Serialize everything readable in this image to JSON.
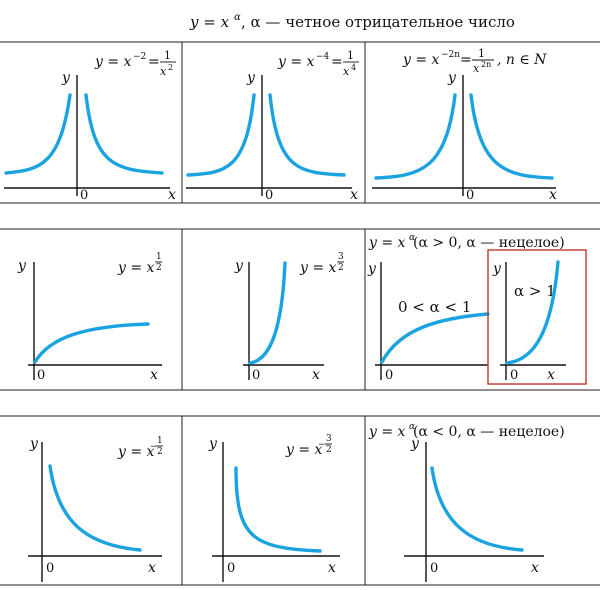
{
  "header": {
    "formula": "y = x",
    "exponent": "α",
    "caption": ", α — четное отрицательное число"
  },
  "row1": [
    {
      "lhs": "y = x",
      "exp": "−2",
      "eq": "=",
      "num": "1",
      "den_base": "x",
      "den_exp": "2",
      "y_label": "y",
      "x_label": "x",
      "origin": "0"
    },
    {
      "lhs": "y = x",
      "exp": "−4",
      "eq": "=",
      "num": "1",
      "den_base": "x",
      "den_exp": "4",
      "y_label": "y",
      "x_label": "x",
      "origin": "0"
    },
    {
      "lhs": "y = x",
      "exp": "−2n",
      "eq": "=",
      "num": "1",
      "den_base": "x",
      "den_exp": "2n",
      "tail": ", n ∈ N",
      "y_label": "y",
      "x_label": "x",
      "origin": "0"
    }
  ],
  "row2": [
    {
      "lhs": "y = x",
      "exp_num": "1",
      "exp_den": "2",
      "y_label": "y",
      "x_label": "x",
      "origin": "0"
    },
    {
      "lhs": "y = x",
      "exp_num": "3",
      "exp_den": "2",
      "y_label": "y",
      "x_label": "x",
      "origin": "0"
    },
    {
      "title_lhs": "y = x",
      "title_exp": "α",
      "title_rest": " (α > 0, α — нецелое)",
      "label_left": "0 < α < 1",
      "label_right": "α > 1",
      "y_label": "y",
      "x_label": "x",
      "origin": "0"
    }
  ],
  "row3": [
    {
      "lhs": "y = x",
      "exp_num": "1",
      "exp_den": "2",
      "y_label": "y",
      "x_label": "x",
      "origin": "0"
    },
    {
      "lhs": "y = x",
      "exp_num": "3",
      "exp_den": "2",
      "y_label": "y",
      "x_label": "x",
      "origin": "0"
    },
    {
      "title_lhs": "y = x",
      "title_exp": "α",
      "title_rest": " (α < 0, α — нецелое)",
      "y_label": "y",
      "x_label": "x",
      "origin": "0"
    }
  ],
  "colors": {
    "curve": "#1aa3e0",
    "highlight_box": "#c0392b",
    "grid": "#222222"
  }
}
